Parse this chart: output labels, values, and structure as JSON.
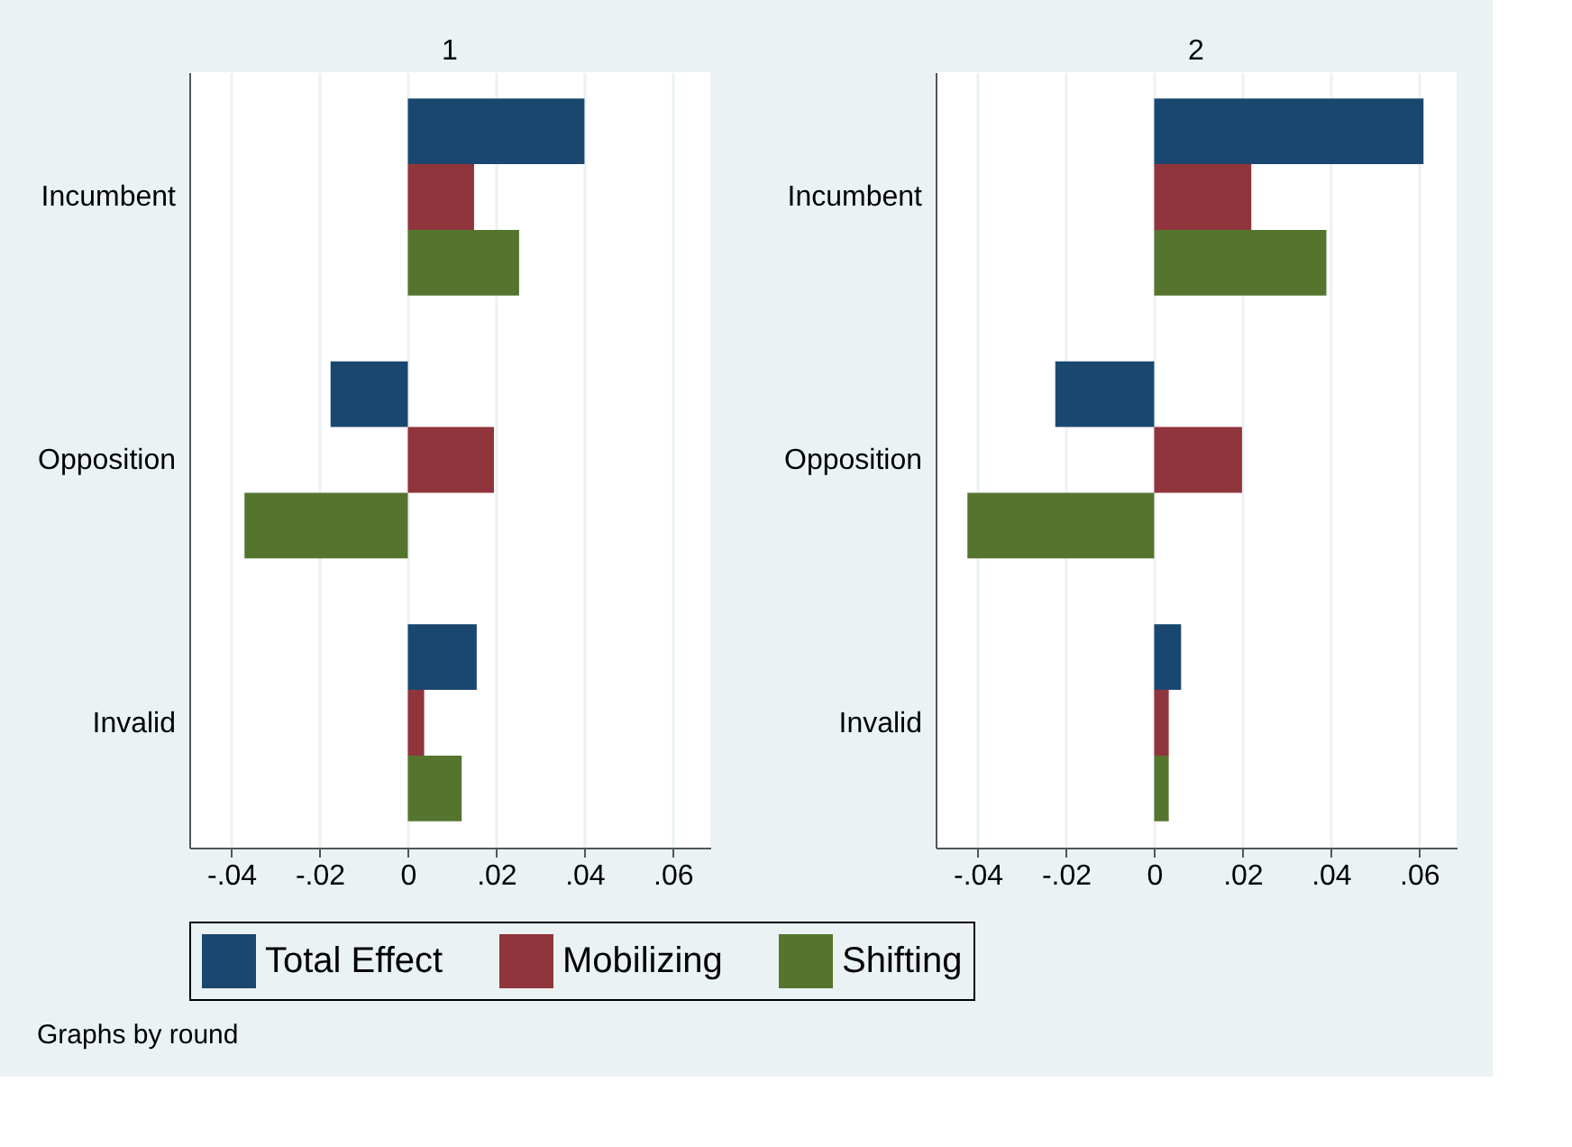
{
  "chart_data": [
    {
      "type": "bar",
      "orientation": "horizontal",
      "title": "1",
      "categories": [
        "Incumbent",
        "Opposition",
        "Invalid"
      ],
      "series": [
        {
          "name": "Total Effect",
          "color": "#1a476f",
          "values": [
            0.04,
            -0.0175,
            0.0156
          ]
        },
        {
          "name": "Mobilizing",
          "color": "#90353b",
          "values": [
            0.015,
            0.0195,
            0.0037
          ]
        },
        {
          "name": "Shifting",
          "color": "#55752f",
          "values": [
            0.0252,
            -0.037,
            0.0122
          ]
        }
      ],
      "xlim": [
        -0.0495,
        0.0685
      ],
      "xticks": [
        {
          "value": -0.04,
          "label": "-.04"
        },
        {
          "value": -0.02,
          "label": "-.02"
        },
        0,
        {
          "value": 0.02,
          "label": ".02"
        },
        {
          "value": 0.04,
          "label": ".04"
        },
        {
          "value": 0.06,
          "label": ".06"
        }
      ],
      "grid": "x",
      "legend": "bottom",
      "annotations": [
        "Graphs by round"
      ]
    },
    {
      "type": "bar",
      "orientation": "horizontal",
      "title": "2",
      "categories": [
        "Incumbent",
        "Opposition",
        "Invalid"
      ],
      "series": [
        {
          "name": "Total Effect",
          "color": "#1a476f",
          "values": [
            0.061,
            -0.0224,
            0.0061
          ]
        },
        {
          "name": "Mobilizing",
          "color": "#90353b",
          "values": [
            0.022,
            0.0199,
            0.0033
          ]
        },
        {
          "name": "Shifting",
          "color": "#55752f",
          "values": [
            0.039,
            -0.0423,
            0.0033
          ]
        }
      ],
      "xlim": [
        -0.0495,
        0.0685
      ],
      "xticks": [
        {
          "value": -0.04,
          "label": "-.04"
        },
        {
          "value": -0.02,
          "label": "-.02"
        },
        0,
        {
          "value": 0.02,
          "label": ".02"
        },
        {
          "value": 0.04,
          "label": ".04"
        },
        {
          "value": 0.06,
          "label": ".06"
        }
      ],
      "grid": "x",
      "legend": "bottom"
    }
  ]
}
